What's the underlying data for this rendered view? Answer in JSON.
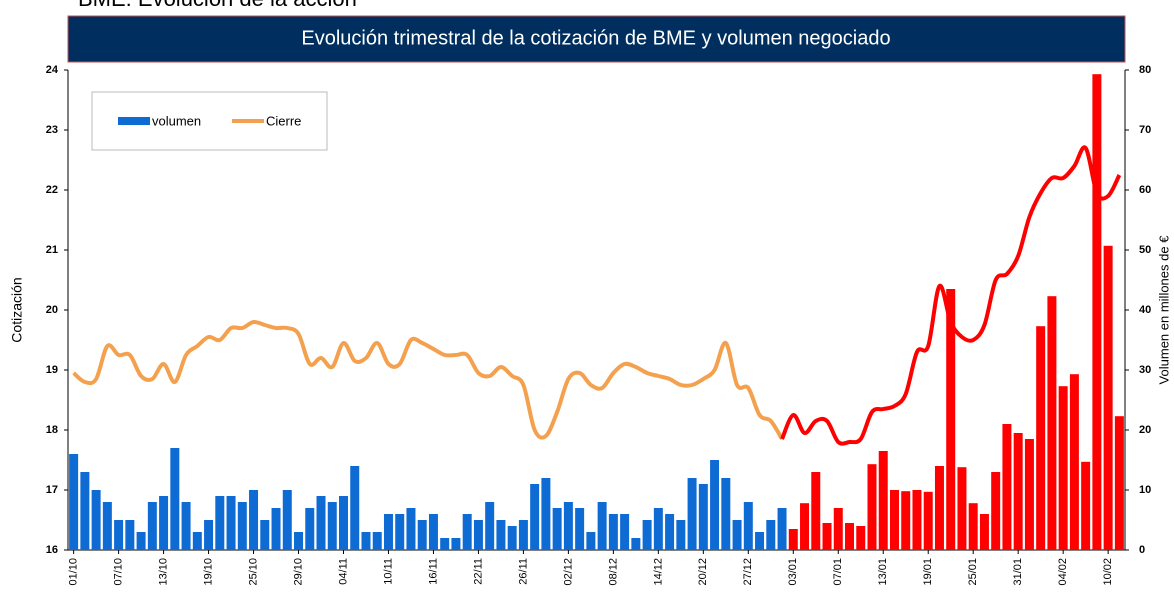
{
  "chart_data": {
    "type": "bar_line",
    "heading": "BME: Evolución de la acción",
    "title": "Evolución trimestral de la cotización de BME y volumen negociado",
    "y_label": "Cotización",
    "y2_label": "Volumen en millones de €",
    "categories": [
      "01/10",
      null,
      null,
      null,
      "07/10",
      null,
      null,
      null,
      "13/10",
      null,
      null,
      null,
      "19/10",
      null,
      null,
      null,
      "25/10",
      null,
      null,
      null,
      "29/10",
      null,
      null,
      null,
      "04/11",
      null,
      null,
      null,
      "10/11",
      null,
      null,
      null,
      "16/11",
      null,
      null,
      null,
      "22/11",
      null,
      null,
      null,
      "26/11",
      null,
      null,
      null,
      "02/12",
      null,
      null,
      null,
      "08/12",
      null,
      null,
      null,
      "14/12",
      null,
      null,
      null,
      "20/12",
      null,
      null,
      null,
      "27/12",
      null,
      null,
      null,
      "03/01",
      null,
      null,
      null,
      "07/01",
      null,
      null,
      null,
      "13/01",
      null,
      null,
      null,
      "19/01",
      null,
      null,
      null,
      "25/01",
      null,
      null,
      null,
      "31/01",
      null,
      null,
      null,
      "04/02",
      null,
      null,
      null,
      "10/02",
      null
    ],
    "series": [
      {
        "name": "volumen",
        "kind": "bar",
        "axis": "y2",
        "color": "#0f6bd4",
        "highlight_color": "#ff0000",
        "values": [
          16,
          13,
          10,
          8,
          5,
          5,
          3,
          8,
          9,
          17,
          8,
          3,
          5,
          9,
          9,
          8,
          10,
          5,
          7,
          10,
          3,
          7,
          9,
          8,
          9,
          14,
          3,
          3,
          6,
          6,
          7,
          5,
          6,
          2,
          2,
          6,
          5,
          8,
          5,
          4,
          5,
          11,
          12,
          7,
          8,
          7,
          3,
          8,
          6,
          6,
          2,
          5,
          7,
          6,
          5,
          12,
          11,
          15,
          12,
          5,
          8,
          3,
          5,
          7,
          3.5,
          7.8,
          13,
          4.5,
          7,
          4.5,
          4,
          14.3,
          16.5,
          10,
          9.8,
          10,
          9.7,
          14,
          43.5,
          13.8,
          7.8,
          6,
          13,
          21,
          19.5,
          18.5,
          37.3,
          42.3,
          27.3,
          29.3,
          14.7,
          79.3,
          50.7,
          22.3
        ]
      },
      {
        "name": "Cierre",
        "kind": "line",
        "axis": "y",
        "color": "#f4a14f",
        "highlight_color": "#ff0000",
        "values": [
          18.95,
          18.8,
          18.85,
          19.4,
          19.25,
          19.25,
          18.9,
          18.85,
          19.1,
          18.8,
          19.25,
          19.4,
          19.55,
          19.5,
          19.7,
          19.7,
          19.8,
          19.75,
          19.7,
          19.7,
          19.6,
          19.1,
          19.2,
          19.05,
          19.45,
          19.15,
          19.2,
          19.45,
          19.1,
          19.1,
          19.5,
          19.45,
          19.35,
          19.25,
          19.25,
          19.25,
          18.95,
          18.9,
          19.05,
          18.9,
          18.75,
          18.0,
          17.9,
          18.3,
          18.85,
          18.95,
          18.75,
          18.7,
          18.95,
          19.1,
          19.05,
          18.95,
          18.9,
          18.85,
          18.75,
          18.75,
          18.85,
          19.0,
          19.45,
          18.75,
          18.7,
          18.25,
          18.15,
          17.85,
          18.25,
          17.95,
          18.15,
          18.15,
          17.8,
          17.8,
          17.85,
          18.3,
          18.35,
          18.4,
          18.6,
          19.3,
          19.4,
          20.4,
          19.8,
          19.55,
          19.5,
          19.75,
          20.5,
          20.6,
          20.9,
          21.55,
          21.95,
          22.2,
          22.2,
          22.4,
          22.7,
          21.95,
          21.9,
          22.25
        ]
      }
    ],
    "highlight_start": "03/01",
    "ylim": [
      16,
      24
    ],
    "yticks": [
      16,
      17,
      18,
      19,
      20,
      21,
      22,
      23,
      24
    ],
    "y2lim": [
      0,
      80
    ],
    "y2ticks": [
      0,
      10,
      20,
      30,
      40,
      50,
      60,
      70,
      80
    ],
    "title_bar_color": "#002f5f"
  }
}
